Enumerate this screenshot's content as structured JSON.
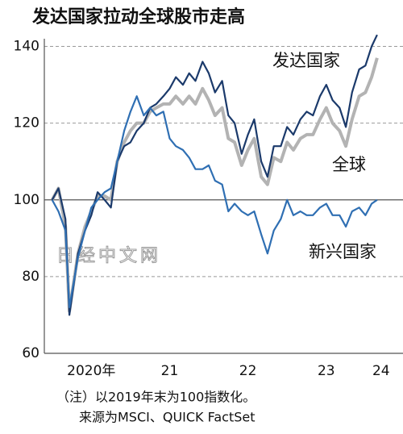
{
  "chart_data": {
    "type": "line",
    "title": "发达国家拉动全球股市走高",
    "x": [
      2020.0,
      2020.08,
      2020.17,
      2020.22,
      2020.33,
      2020.42,
      2020.5,
      2020.58,
      2020.67,
      2020.75,
      2020.83,
      2020.92,
      2021.0,
      2021.08,
      2021.17,
      2021.25,
      2021.33,
      2021.42,
      2021.5,
      2021.58,
      2021.67,
      2021.75,
      2021.83,
      2021.92,
      2022.0,
      2022.08,
      2022.17,
      2022.25,
      2022.33,
      2022.42,
      2022.5,
      2022.58,
      2022.67,
      2022.75,
      2022.83,
      2022.92,
      2023.0,
      2023.08,
      2023.17,
      2023.25,
      2023.33,
      2023.42,
      2023.5,
      2023.58,
      2023.67,
      2023.75,
      2023.83,
      2023.92,
      2024.0,
      2024.08,
      2024.15
    ],
    "series": [
      {
        "name": "全球",
        "color": "#b3b3b3",
        "values": [
          100,
          103,
          93,
          71,
          86,
          93,
          97,
          101,
          101,
          100,
          110,
          115,
          118,
          120,
          120,
          123,
          124,
          125,
          125,
          127,
          125,
          127,
          125,
          129,
          126,
          122,
          124,
          116,
          115,
          109,
          113,
          116,
          106,
          104,
          111,
          110,
          115,
          113,
          116,
          117,
          117,
          121,
          124,
          120,
          118,
          114,
          121,
          127,
          128,
          132,
          137
        ]
      },
      {
        "name": "发达国家",
        "color": "#1b3a6b",
        "values": [
          100,
          103,
          95,
          70,
          86,
          92,
          96,
          102,
          100,
          98,
          110,
          114,
          115,
          118,
          120,
          124,
          125,
          127,
          129,
          132,
          130,
          133,
          131,
          136,
          133,
          128,
          131,
          122,
          120,
          112,
          117,
          121,
          110,
          106,
          114,
          114,
          119,
          117,
          121,
          123,
          122,
          127,
          130,
          126,
          124,
          119,
          128,
          134,
          135,
          140,
          143
        ]
      },
      {
        "name": "新兴国家",
        "color": "#2f6fb3",
        "values": [
          100,
          97,
          92,
          72,
          85,
          92,
          98,
          100,
          102,
          103,
          110,
          118,
          123,
          127,
          122,
          124,
          122,
          123,
          116,
          114,
          113,
          111,
          108,
          108,
          109,
          105,
          104,
          97,
          99,
          97,
          96,
          97,
          91,
          86,
          92,
          95,
          100,
          96,
          97,
          96,
          96,
          98,
          99,
          96,
          96,
          93,
          97,
          98,
          96,
          99,
          100
        ]
      }
    ],
    "xlim": [
      2019.9,
      2024.48
    ],
    "xticks": [
      {
        "value": 2020.5,
        "label": "2020年"
      },
      {
        "value": 2021.5,
        "label": "21"
      },
      {
        "value": 2022.5,
        "label": "22"
      },
      {
        "value": 2023.5,
        "label": "23"
      },
      {
        "value": 2024.2,
        "label": "24"
      }
    ],
    "ylim": [
      60,
      142
    ],
    "yticks": [
      60,
      80,
      100,
      120,
      140
    ],
    "grid": true,
    "watermark": "日经中文网",
    "notes": [
      "（注）以2019年末为100指数化。",
      "来源为MSCI、QUICK FactSet"
    ]
  }
}
